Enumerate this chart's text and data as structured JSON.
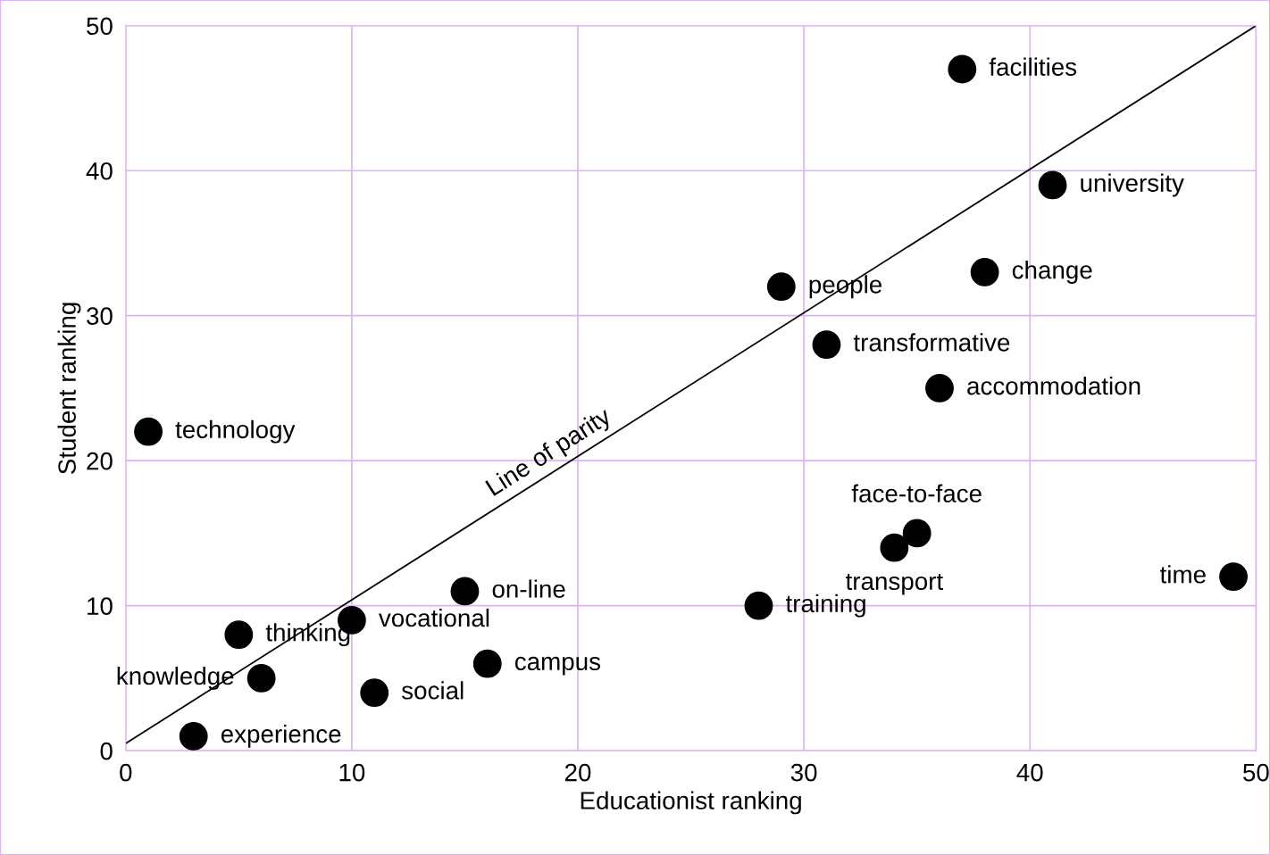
{
  "chart_data": {
    "type": "scatter",
    "xlabel": "Educationist ranking",
    "ylabel": "Student ranking",
    "xlim": [
      0,
      50
    ],
    "ylim": [
      0,
      50
    ],
    "xticks": [
      0,
      10,
      20,
      30,
      40,
      50
    ],
    "yticks": [
      0,
      10,
      20,
      30,
      40,
      50
    ],
    "grid": true,
    "series": [
      {
        "marker": "circle",
        "color": "#000000",
        "x": [
          1,
          3,
          5,
          6,
          10,
          11,
          15,
          16,
          28,
          29,
          31,
          34,
          35,
          36,
          37,
          38,
          41,
          49
        ],
        "values": [
          22,
          1,
          8,
          5,
          9,
          4,
          11,
          6,
          10,
          32,
          28,
          14,
          15,
          25,
          47,
          33,
          39,
          12
        ]
      },
      {
        "type": "line",
        "marker": "none",
        "color": "#000000",
        "x": [
          0,
          50
        ],
        "values": [
          0.5,
          50
        ]
      }
    ],
    "annotations": [
      {
        "text": "Line of parity",
        "x": 19,
        "y": 19.3
      },
      {
        "text": "technology",
        "x": 1,
        "y": 22
      },
      {
        "text": "experience",
        "x": 3,
        "y": 1
      },
      {
        "text": "thinking",
        "x": 5,
        "y": 8
      },
      {
        "text": "knowledge",
        "x": 6,
        "y": 5
      },
      {
        "text": "vocational",
        "x": 10,
        "y": 9
      },
      {
        "text": "social",
        "x": 11,
        "y": 4
      },
      {
        "text": "on-line",
        "x": 15,
        "y": 11
      },
      {
        "text": "campus",
        "x": 16,
        "y": 6
      },
      {
        "text": "training",
        "x": 28,
        "y": 10
      },
      {
        "text": "people",
        "x": 29,
        "y": 32
      },
      {
        "text": "transformative",
        "x": 31,
        "y": 28
      },
      {
        "text": "transport",
        "x": 34,
        "y": 14
      },
      {
        "text": "face-to-face",
        "x": 35,
        "y": 15
      },
      {
        "text": "accommodation",
        "x": 36,
        "y": 25
      },
      {
        "text": "facilities",
        "x": 37,
        "y": 47
      },
      {
        "text": "change",
        "x": 38,
        "y": 33
      },
      {
        "text": "university",
        "x": 41,
        "y": 39
      },
      {
        "text": "time",
        "x": 49,
        "y": 12
      }
    ]
  }
}
